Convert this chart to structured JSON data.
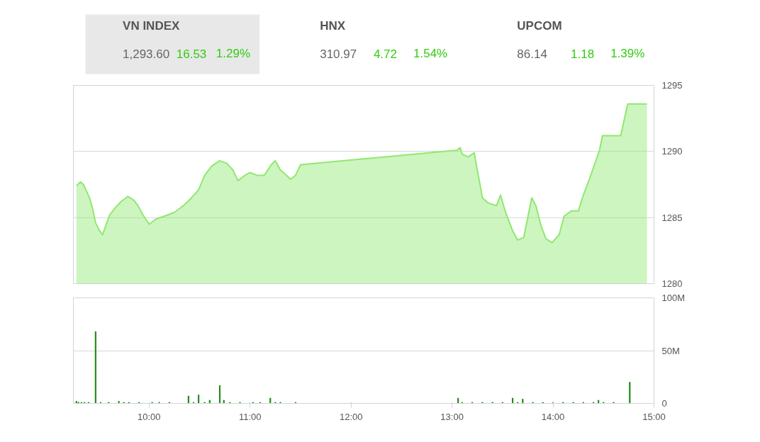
{
  "chart_data": [
    {
      "type": "other",
      "categories": [
        "VN INDEX",
        "HNX",
        "UPCOM"
      ],
      "annotations": [
        "1,293.60",
        "16.53",
        "1.29%",
        "310.97",
        "4.72",
        "1.54%",
        "86.14",
        "1.18",
        "1.39%"
      ]
    },
    {
      "type": "area",
      "color": "#90e870",
      "x": [
        9.28,
        9.32,
        9.35,
        9.38,
        9.41,
        9.44,
        9.47,
        9.51,
        9.54,
        9.58,
        9.61,
        9.66,
        9.72,
        9.79,
        9.85,
        9.89,
        9.94,
        10.0,
        10.07,
        10.15,
        10.25,
        10.34,
        10.42,
        10.49,
        10.55,
        10.62,
        10.7,
        10.77,
        10.83,
        10.88,
        10.95,
        11.0,
        11.07,
        11.14,
        11.21,
        11.25,
        11.3,
        11.36,
        11.4,
        11.45,
        11.5,
        13.05,
        13.08,
        13.1,
        13.16,
        13.22,
        13.24,
        13.27,
        13.3,
        13.36,
        13.44,
        13.48,
        13.53,
        13.6,
        13.65,
        13.71,
        13.76,
        13.79,
        13.83,
        13.88,
        13.93,
        13.99,
        14.06,
        14.11,
        14.18,
        14.25,
        14.3,
        14.35,
        14.41,
        14.46,
        14.49,
        14.67,
        14.74,
        14.93
      ],
      "values": [
        1287.4,
        1287.7,
        1287.5,
        1287.0,
        1286.5,
        1285.7,
        1284.6,
        1284.0,
        1283.7,
        1284.6,
        1285.2,
        1285.7,
        1286.2,
        1286.6,
        1286.3,
        1285.9,
        1285.2,
        1284.5,
        1284.9,
        1285.1,
        1285.4,
        1285.9,
        1286.5,
        1287.1,
        1288.2,
        1288.9,
        1289.3,
        1289.1,
        1288.6,
        1287.8,
        1288.2,
        1288.4,
        1288.2,
        1288.2,
        1289.0,
        1289.3,
        1288.6,
        1288.2,
        1287.9,
        1288.2,
        1289.0,
        1290.1,
        1290.3,
        1289.8,
        1289.6,
        1289.9,
        1289.0,
        1287.8,
        1286.5,
        1286.1,
        1285.9,
        1286.7,
        1285.4,
        1284.0,
        1283.3,
        1283.5,
        1285.4,
        1286.5,
        1285.9,
        1284.4,
        1283.4,
        1283.1,
        1283.7,
        1285.1,
        1285.5,
        1285.5,
        1286.7,
        1287.7,
        1289.0,
        1290.1,
        1291.2,
        1291.2,
        1293.6,
        1293.6
      ],
      "xlim": [
        9.25,
        15.0
      ],
      "ylim": [
        1280,
        1295
      ],
      "yticks": [
        1280,
        1285,
        1290,
        1295
      ],
      "grid": "y",
      "tick_labels": "y"
    },
    {
      "type": "bar",
      "color": "#1a8a10",
      "x": [
        9.28,
        9.3,
        9.33,
        9.36,
        9.4,
        9.47,
        9.52,
        9.6,
        9.7,
        9.75,
        9.8,
        9.9,
        10.03,
        10.1,
        10.2,
        10.39,
        10.44,
        10.49,
        10.55,
        10.6,
        10.7,
        10.74,
        10.8,
        10.9,
        11.03,
        11.1,
        11.2,
        11.25,
        11.3,
        11.45,
        13.06,
        13.1,
        13.2,
        13.3,
        13.4,
        13.5,
        13.6,
        13.65,
        13.7,
        13.8,
        13.9,
        14.0,
        14.1,
        14.2,
        14.3,
        14.4,
        14.45,
        14.5,
        14.6,
        14.76
      ],
      "values": [
        2,
        1,
        1,
        1,
        1,
        68,
        1,
        1,
        2,
        1,
        1,
        1,
        1,
        1,
        1,
        7,
        1,
        8,
        1,
        3,
        17,
        3,
        1,
        1,
        1,
        1,
        5,
        1,
        1,
        1,
        5,
        1,
        1,
        1,
        1,
        1,
        5,
        1,
        4,
        1,
        1,
        1,
        1,
        1,
        1,
        1,
        3,
        1,
        1,
        20
      ],
      "xlim": [
        9.25,
        15.0
      ],
      "xticks": [
        {
          "value": 10,
          "label": "10:00"
        },
        {
          "value": 11,
          "label": "11:00"
        },
        {
          "value": 12,
          "label": "12:00"
        },
        {
          "value": 13,
          "label": "13:00"
        },
        {
          "value": 14,
          "label": "14:00"
        },
        {
          "value": 15,
          "label": "15:00"
        }
      ],
      "ylim": [
        0,
        100
      ],
      "yticks": [
        0,
        {
          "value": 50,
          "label": "50M"
        },
        {
          "value": 100,
          "label": "100M"
        }
      ],
      "grid": "y"
    }
  ]
}
